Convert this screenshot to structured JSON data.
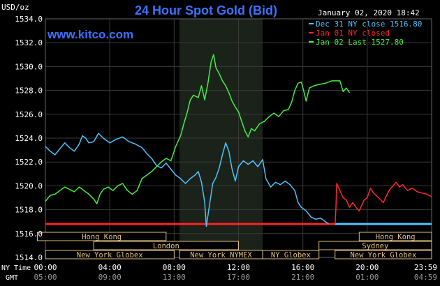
{
  "header": {
    "title": "24 Hour Spot Gold (Bid)",
    "date": "January 02, 2020 18:42",
    "website": "www.kitco.com",
    "currency_unit": "USD/oz"
  },
  "legend": [
    {
      "label": "Dec 31 NY close 1516.80",
      "color": "#4dc3ff"
    },
    {
      "label": "Jan 01 NY closed",
      "color": "#ff2a2a"
    },
    {
      "label": "Jan 02 Last 1527.80",
      "color": "#44ee44"
    }
  ],
  "time_axis": {
    "ny_label": "NY Time",
    "gmt_label": "GMT",
    "ny_ticks": [
      "00:00",
      "04:00",
      "08:00",
      "12:00",
      "16:00",
      "20:00",
      "23:59"
    ],
    "gmt_ticks": [
      "05:00",
      "09:00",
      "13:00",
      "17:00",
      "21:00",
      "01:00",
      "04:59"
    ]
  },
  "sessions": [
    {
      "label": "Hong Kong",
      "row": 0,
      "start": -0.5,
      "end": 7.5
    },
    {
      "label": "London",
      "row": 1,
      "start": 3,
      "end": 12
    },
    {
      "label": "New York Globex",
      "row": 2,
      "start": 0,
      "end": 8
    },
    {
      "label": "New York NYMEX",
      "row": 2,
      "start": 8.33,
      "end": 13.5
    },
    {
      "label": "NY Globex",
      "row": 2,
      "start": 13.5,
      "end": 17
    },
    {
      "label": "Hong Kong",
      "row": 0,
      "start": 19.5,
      "end": 24
    },
    {
      "label": "Sydney",
      "row": 1,
      "start": 17,
      "end": 24
    },
    {
      "label": "New York Globex",
      "row": 2,
      "start": 18,
      "end": 24
    }
  ],
  "colors": {
    "background": "#000000",
    "grid": "#3a3a3a",
    "nymex_shade": "#1a221a",
    "title": "#3a72ff",
    "website": "#3a72ff",
    "session_bar": "#e0c080",
    "axis_text": "#ffffff",
    "prev_close_line": "#ff2222"
  },
  "chart_data": {
    "type": "line",
    "title": "24 Hour Spot Gold (Bid)",
    "ylabel": "USD/oz",
    "xlabel": "NY Time",
    "xlim": [
      0,
      24
    ],
    "ylim": [
      1514.0,
      1534.0
    ],
    "yticks": [
      "1514.0",
      "1516.0",
      "1518.0",
      "1520.0",
      "1522.0",
      "1524.0",
      "1526.0",
      "1528.0",
      "1530.0",
      "1532.0",
      "1534.0"
    ],
    "ytick_values": [
      1514,
      1516,
      1518,
      1520,
      1522,
      1524,
      1526,
      1528,
      1530,
      1532,
      1534
    ],
    "grid": true,
    "legend_position": "top-right",
    "reference_line": {
      "value": 1516.8
    },
    "series": [
      {
        "name": "Dec 31 NY close 1516.80",
        "color": "#4dc3ff",
        "points": [
          [
            0.0,
            1523.3
          ],
          [
            0.3,
            1522.9
          ],
          [
            0.6,
            1522.6
          ],
          [
            0.9,
            1523.1
          ],
          [
            1.2,
            1523.6
          ],
          [
            1.5,
            1523.2
          ],
          [
            1.8,
            1522.9
          ],
          [
            2.1,
            1523.5
          ],
          [
            2.3,
            1524.2
          ],
          [
            2.5,
            1524.0
          ],
          [
            2.7,
            1523.6
          ],
          [
            3.0,
            1523.7
          ],
          [
            3.3,
            1524.4
          ],
          [
            3.6,
            1524.0
          ],
          [
            4.0,
            1523.6
          ],
          [
            4.4,
            1523.9
          ],
          [
            4.8,
            1524.1
          ],
          [
            5.2,
            1523.7
          ],
          [
            5.6,
            1523.5
          ],
          [
            6.0,
            1523.2
          ],
          [
            6.3,
            1522.7
          ],
          [
            6.6,
            1522.3
          ],
          [
            6.9,
            1521.7
          ],
          [
            7.2,
            1521.5
          ],
          [
            7.5,
            1521.9
          ],
          [
            7.8,
            1521.4
          ],
          [
            8.1,
            1520.9
          ],
          [
            8.4,
            1520.6
          ],
          [
            8.7,
            1520.2
          ],
          [
            9.0,
            1520.6
          ],
          [
            9.3,
            1520.9
          ],
          [
            9.5,
            1521.2
          ],
          [
            9.7,
            1520.3
          ],
          [
            9.9,
            1518.6
          ],
          [
            10.0,
            1516.6
          ],
          [
            10.2,
            1518.4
          ],
          [
            10.4,
            1520.2
          ],
          [
            10.6,
            1520.7
          ],
          [
            10.8,
            1521.5
          ],
          [
            11.0,
            1522.6
          ],
          [
            11.2,
            1523.6
          ],
          [
            11.4,
            1522.9
          ],
          [
            11.6,
            1521.4
          ],
          [
            11.8,
            1520.4
          ],
          [
            12.0,
            1521.6
          ],
          [
            12.3,
            1522.1
          ],
          [
            12.6,
            1521.8
          ],
          [
            12.9,
            1522.1
          ],
          [
            13.2,
            1521.6
          ],
          [
            13.5,
            1522.2
          ],
          [
            13.7,
            1520.6
          ],
          [
            14.0,
            1519.9
          ],
          [
            14.3,
            1520.3
          ],
          [
            14.6,
            1520.1
          ],
          [
            14.9,
            1520.4
          ],
          [
            15.2,
            1520.1
          ],
          [
            15.5,
            1519.6
          ],
          [
            15.7,
            1518.6
          ],
          [
            15.9,
            1518.2
          ],
          [
            16.2,
            1517.9
          ],
          [
            16.5,
            1517.4
          ],
          [
            16.8,
            1517.2
          ],
          [
            17.1,
            1517.3
          ],
          [
            17.4,
            1517.0
          ],
          [
            17.6,
            1516.8
          ]
        ]
      },
      {
        "name": "Jan 01 NY closed",
        "color": "#ff2a2a",
        "points": [
          [
            18.0,
            1516.8
          ],
          [
            18.05,
            1518.0
          ],
          [
            18.1,
            1520.2
          ],
          [
            18.3,
            1519.6
          ],
          [
            18.5,
            1519.0
          ],
          [
            18.7,
            1518.8
          ],
          [
            18.9,
            1518.2
          ],
          [
            19.1,
            1518.6
          ],
          [
            19.3,
            1518.2
          ],
          [
            19.5,
            1517.9
          ],
          [
            19.8,
            1518.8
          ],
          [
            20.0,
            1519.0
          ],
          [
            20.2,
            1519.8
          ],
          [
            20.4,
            1519.4
          ],
          [
            20.7,
            1519.0
          ],
          [
            21.0,
            1518.6
          ],
          [
            21.2,
            1519.2
          ],
          [
            21.4,
            1519.7
          ],
          [
            21.6,
            1520.0
          ],
          [
            21.8,
            1520.3
          ],
          [
            22.0,
            1519.9
          ],
          [
            22.2,
            1520.1
          ],
          [
            22.5,
            1519.6
          ],
          [
            22.8,
            1519.8
          ],
          [
            23.1,
            1519.5
          ],
          [
            23.4,
            1519.4
          ],
          [
            23.7,
            1519.3
          ],
          [
            23.99,
            1519.1
          ]
        ]
      },
      {
        "name": "Jan 02 Last 1527.80",
        "color": "#44ee44",
        "points": [
          [
            0.0,
            1518.7
          ],
          [
            0.3,
            1519.2
          ],
          [
            0.6,
            1519.3
          ],
          [
            0.9,
            1519.6
          ],
          [
            1.2,
            1519.9
          ],
          [
            1.5,
            1519.7
          ],
          [
            1.8,
            1519.5
          ],
          [
            2.1,
            1519.9
          ],
          [
            2.4,
            1519.6
          ],
          [
            2.7,
            1519.3
          ],
          [
            3.0,
            1518.9
          ],
          [
            3.2,
            1518.5
          ],
          [
            3.4,
            1519.3
          ],
          [
            3.6,
            1519.7
          ],
          [
            3.9,
            1519.9
          ],
          [
            4.2,
            1519.6
          ],
          [
            4.5,
            1520.0
          ],
          [
            4.8,
            1520.2
          ],
          [
            5.1,
            1519.6
          ],
          [
            5.4,
            1519.3
          ],
          [
            5.7,
            1519.6
          ],
          [
            6.0,
            1520.6
          ],
          [
            6.3,
            1520.9
          ],
          [
            6.6,
            1521.2
          ],
          [
            6.9,
            1521.6
          ],
          [
            7.2,
            1522.0
          ],
          [
            7.5,
            1522.3
          ],
          [
            7.8,
            1522.1
          ],
          [
            8.1,
            1523.3
          ],
          [
            8.4,
            1524.2
          ],
          [
            8.6,
            1525.2
          ],
          [
            8.8,
            1526.1
          ],
          [
            9.0,
            1527.2
          ],
          [
            9.2,
            1527.6
          ],
          [
            9.5,
            1527.4
          ],
          [
            9.7,
            1528.4
          ],
          [
            9.9,
            1527.2
          ],
          [
            10.1,
            1528.6
          ],
          [
            10.3,
            1530.4
          ],
          [
            10.45,
            1531.0
          ],
          [
            10.6,
            1529.9
          ],
          [
            10.8,
            1529.4
          ],
          [
            11.0,
            1528.8
          ],
          [
            11.2,
            1528.4
          ],
          [
            11.4,
            1527.8
          ],
          [
            11.6,
            1527.1
          ],
          [
            11.8,
            1526.6
          ],
          [
            12.0,
            1526.2
          ],
          [
            12.2,
            1525.4
          ],
          [
            12.4,
            1524.6
          ],
          [
            12.6,
            1524.1
          ],
          [
            12.8,
            1524.8
          ],
          [
            13.0,
            1524.6
          ],
          [
            13.3,
            1525.2
          ],
          [
            13.6,
            1525.4
          ],
          [
            13.9,
            1525.8
          ],
          [
            14.2,
            1526.1
          ],
          [
            14.5,
            1525.8
          ],
          [
            14.8,
            1526.3
          ],
          [
            15.1,
            1526.4
          ],
          [
            15.3,
            1527.0
          ],
          [
            15.5,
            1528.0
          ],
          [
            15.7,
            1528.6
          ],
          [
            15.9,
            1528.7
          ],
          [
            16.1,
            1527.7
          ],
          [
            16.2,
            1527.1
          ],
          [
            16.4,
            1528.2
          ],
          [
            16.7,
            1528.4
          ],
          [
            17.0,
            1528.5
          ],
          [
            17.4,
            1528.6
          ],
          [
            17.8,
            1528.8
          ],
          [
            18.0,
            1528.8
          ],
          [
            18.3,
            1528.8
          ],
          [
            18.5,
            1527.9
          ],
          [
            18.7,
            1528.2
          ],
          [
            18.9,
            1527.8
          ]
        ]
      }
    ]
  }
}
